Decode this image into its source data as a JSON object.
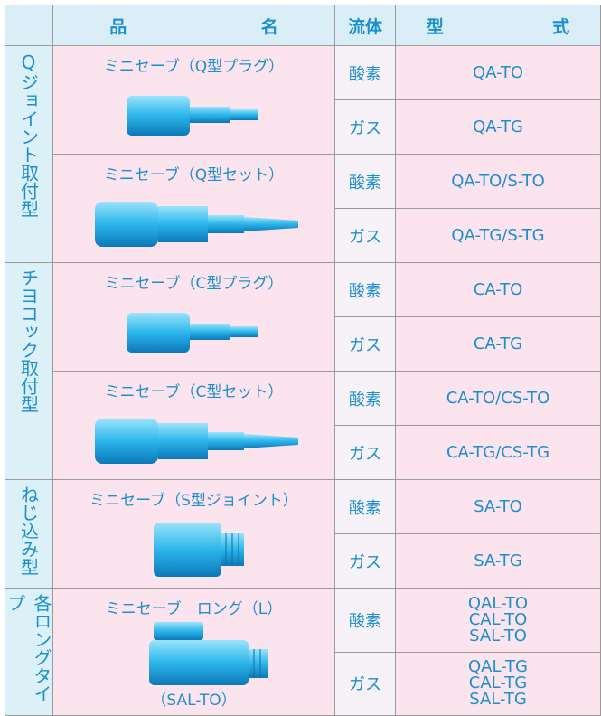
{
  "header": {
    "product": [
      "品",
      "名"
    ],
    "fluid": "流体",
    "model": [
      "型",
      "式"
    ]
  },
  "groups": [
    {
      "label": "Qジョイント取付型",
      "products": [
        {
          "name": "ミニセーブ（Q型プラグ）",
          "rows": [
            {
              "fluid": "酸素",
              "model": [
                "QA-TO"
              ]
            },
            {
              "fluid": "ガス",
              "model": [
                "QA-TG"
              ]
            }
          ]
        },
        {
          "name": "ミニセーブ（Q型セット）",
          "rows": [
            {
              "fluid": "酸素",
              "model": [
                "QA-TO/S-TO"
              ]
            },
            {
              "fluid": "ガス",
              "model": [
                "QA-TG/S-TG"
              ]
            }
          ]
        }
      ]
    },
    {
      "label": "チヨコック取付型",
      "products": [
        {
          "name": "ミニセーブ（C型プラグ）",
          "rows": [
            {
              "fluid": "酸素",
              "model": [
                "CA-TO"
              ]
            },
            {
              "fluid": "ガス",
              "model": [
                "CA-TG"
              ]
            }
          ]
        },
        {
          "name": "ミニセーブ（C型セット）",
          "rows": [
            {
              "fluid": "酸素",
              "model": [
                "CA-TO/CS-TO"
              ]
            },
            {
              "fluid": "ガス",
              "model": [
                "CA-TG/CS-TG"
              ]
            }
          ]
        }
      ]
    },
    {
      "label": "ねじ込み型",
      "products": [
        {
          "name": "ミニセーブ（S型ジョイント）",
          "rows": [
            {
              "fluid": "酸素",
              "model": [
                "SA-TO"
              ]
            },
            {
              "fluid": "ガス",
              "model": [
                "SA-TG"
              ]
            }
          ]
        }
      ]
    },
    {
      "label": "各ロングタイプ",
      "products": [
        {
          "name": "ミニセーブ　ロング（L）",
          "caption": "（SAL-TO）",
          "rows": [
            {
              "fluid": "酸素",
              "model": [
                "QAL-TO",
                "CAL-TO",
                "SAL-TO"
              ]
            },
            {
              "fluid": "ガス",
              "model": [
                "QAL-TG",
                "CAL-TG",
                "SAL-TG"
              ]
            }
          ]
        }
      ]
    }
  ]
}
